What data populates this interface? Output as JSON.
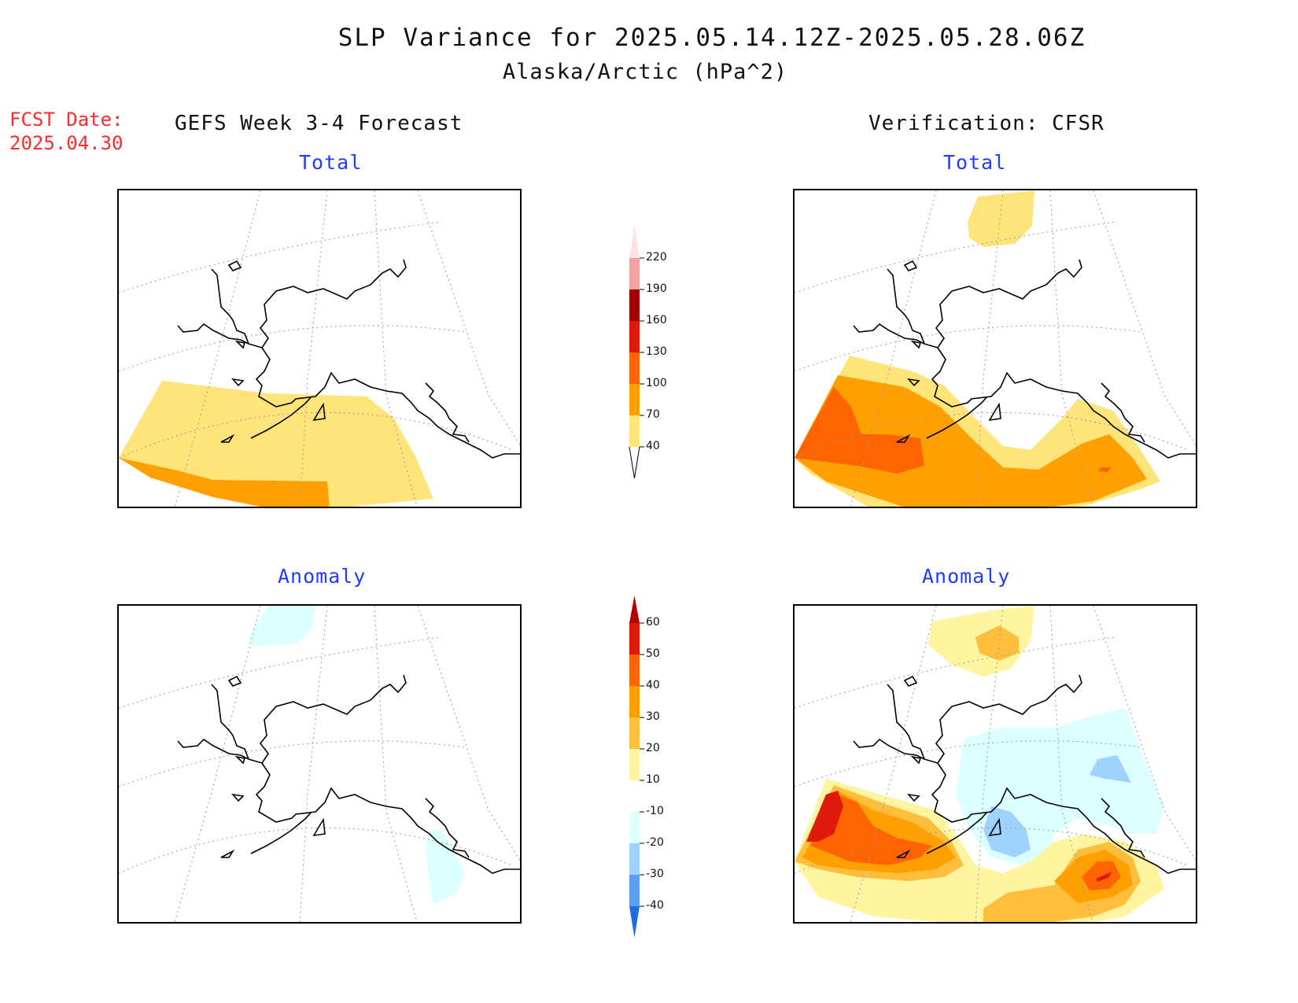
{
  "title": {
    "line1": "SLP Variance for 2025.05.14.12Z-2025.05.28.06Z",
    "line2": "Alaska/Arctic (hPa^2)"
  },
  "fcst_date": {
    "label": "FCST Date:",
    "value": "2025.04.30"
  },
  "columns": {
    "left": "GEFS Week 3-4 Forecast",
    "right": "Verification: CFSR"
  },
  "panels": {
    "total": "Total",
    "anomaly": "Anomaly"
  },
  "colorbar_total": {
    "labels": [
      "220",
      "190",
      "160",
      "130",
      "100",
      "70",
      "40"
    ],
    "colors": [
      "#fde3e3",
      "#f2a0a0",
      "#a00000",
      "#e01a0a",
      "#ff6400",
      "#ffa000",
      "#ffe47a"
    ]
  },
  "colorbar_anomaly": {
    "labels": [
      "60",
      "50",
      "40",
      "30",
      "20",
      "10",
      "-10",
      "-20",
      "-30",
      "-40"
    ],
    "colors": [
      "#b40000",
      "#e01a0a",
      "#ff6400",
      "#ffa000",
      "#ffbe3c",
      "#fff5a0",
      "#ffffff",
      "#dcffff",
      "#a0d2ff",
      "#5aa0f0",
      "#1e6edc"
    ]
  },
  "shading_colors": {
    "c40": "#ffe47a",
    "c70": "#ffa000",
    "c100": "#ff6400",
    "c130": "#e01a0a",
    "a10": "#fff5a0",
    "a20": "#ffbe3c",
    "a30": "#ffa000",
    "a40": "#ff6400",
    "a50": "#e01a0a",
    "n10": "#dcffff",
    "n20": "#a0d2ff",
    "n30": "#5aa0f0"
  }
}
